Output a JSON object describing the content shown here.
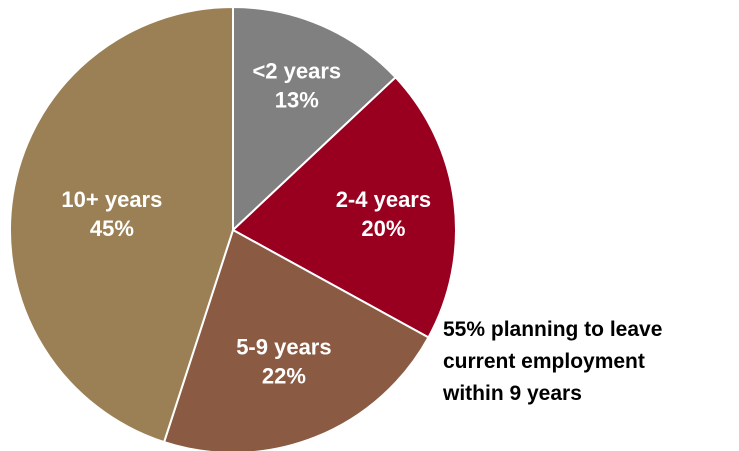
{
  "chart_data": {
    "type": "pie",
    "title": "",
    "start_angle_deg": 0,
    "direction": "clockwise",
    "slices": [
      {
        "label": "<2 years",
        "value": 13,
        "value_label": "13%",
        "color": "#808080"
      },
      {
        "label": "2-4 years",
        "value": 20,
        "value_label": "20%",
        "color": "#990020"
      },
      {
        "label": "5-9 years",
        "value": 22,
        "value_label": "22%",
        "color": "#8B5A42"
      },
      {
        "label": "10+ years",
        "value": 45,
        "value_label": "45%",
        "color": "#9B8055"
      }
    ],
    "legend": "none",
    "annotation": {
      "lines": [
        "55% planning to leave",
        "current employment",
        "within 9 years"
      ]
    }
  }
}
